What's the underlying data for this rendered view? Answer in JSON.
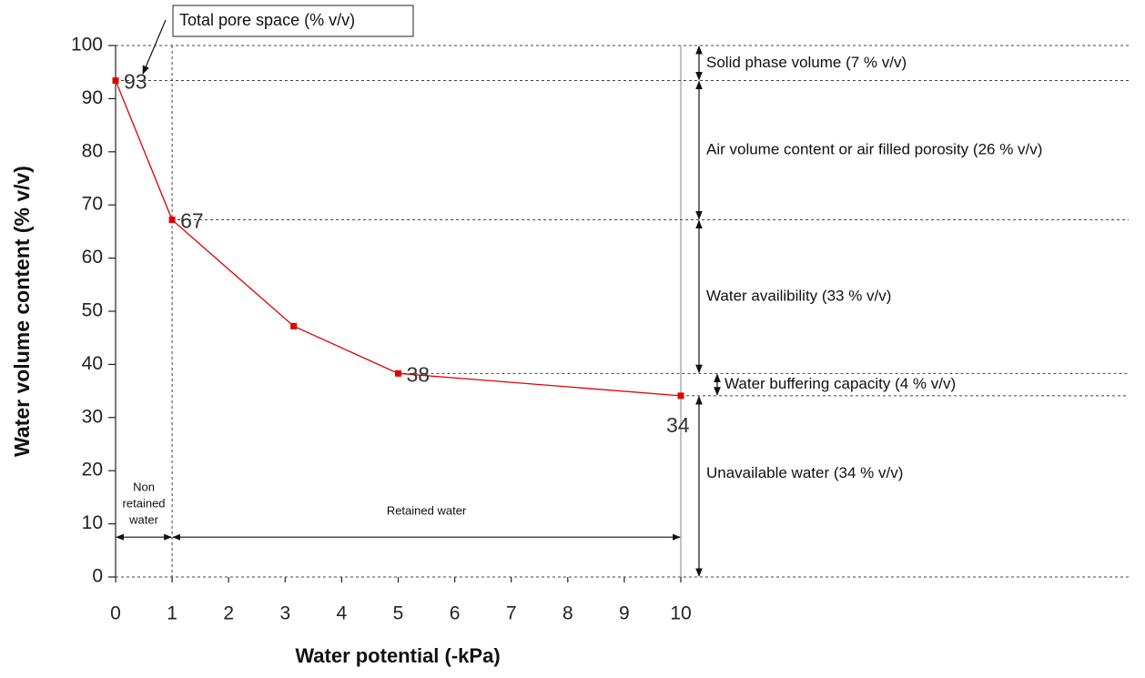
{
  "chart_data": {
    "type": "line",
    "x": [
      0,
      1,
      3.15,
      5,
      10
    ],
    "values": [
      93.4,
      67.2,
      47.2,
      38.3,
      34.1
    ],
    "value_labels": [
      "93",
      "67",
      null,
      "38",
      "34"
    ],
    "color": "#e00000",
    "xlabel": "Water potential (-kPa)",
    "ylabel": "Water volume content (% v/v)",
    "xlim": [
      0,
      10
    ],
    "ylim": [
      0,
      100
    ],
    "xticks": [
      0,
      1,
      2,
      3,
      4,
      5,
      6,
      7,
      8,
      9,
      10
    ],
    "yticks": [
      0,
      10,
      20,
      30,
      40,
      50,
      60,
      70,
      80,
      90,
      100
    ],
    "annotations": {
      "total_pore_space": "Total pore space (% v/v)",
      "solid_phase": "Solid phase volume (7 % v/v)",
      "air_volume": "Air volume content or air filled porosity (26 % v/v)",
      "water_availability": "Water availibility (33 % v/v)",
      "buffering": "Water buffering capacity (4 % v/v)",
      "unavailable": "Unavailable water (34 % v/v)",
      "non_retained": [
        "Non",
        "retained",
        "water"
      ],
      "retained": "Retained water"
    }
  }
}
